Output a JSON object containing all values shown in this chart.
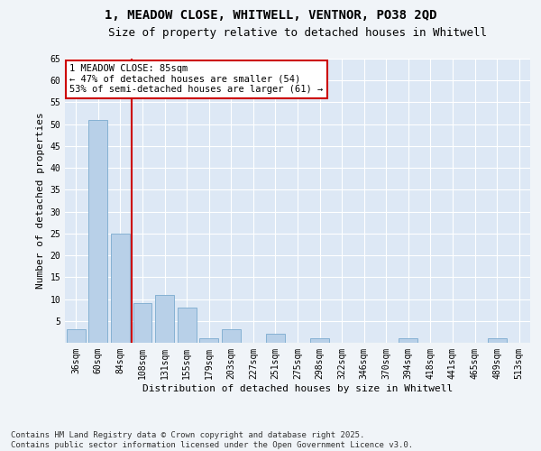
{
  "title1": "1, MEADOW CLOSE, WHITWELL, VENTNOR, PO38 2QD",
  "title2": "Size of property relative to detached houses in Whitwell",
  "xlabel": "Distribution of detached houses by size in Whitwell",
  "ylabel": "Number of detached properties",
  "categories": [
    "36sqm",
    "60sqm",
    "84sqm",
    "108sqm",
    "131sqm",
    "155sqm",
    "179sqm",
    "203sqm",
    "227sqm",
    "251sqm",
    "275sqm",
    "298sqm",
    "322sqm",
    "346sqm",
    "370sqm",
    "394sqm",
    "418sqm",
    "441sqm",
    "465sqm",
    "489sqm",
    "513sqm"
  ],
  "values": [
    3,
    51,
    25,
    9,
    11,
    8,
    1,
    3,
    0,
    2,
    0,
    1,
    0,
    0,
    0,
    1,
    0,
    0,
    0,
    1,
    0
  ],
  "bar_color": "#b8d0e8",
  "bar_edge_color": "#7aaace",
  "property_line_color": "#cc0000",
  "annotation_text": "1 MEADOW CLOSE: 85sqm\n← 47% of detached houses are smaller (54)\n53% of semi-detached houses are larger (61) →",
  "annotation_box_color": "#cc0000",
  "ylim": [
    0,
    65
  ],
  "yticks": [
    0,
    5,
    10,
    15,
    20,
    25,
    30,
    35,
    40,
    45,
    50,
    55,
    60,
    65
  ],
  "bg_color": "#dde8f5",
  "fig_color": "#f0f4f8",
  "footer_text": "Contains HM Land Registry data © Crown copyright and database right 2025.\nContains public sector information licensed under the Open Government Licence v3.0.",
  "title_fontsize": 10,
  "title2_fontsize": 9,
  "axis_label_fontsize": 8,
  "tick_fontsize": 7,
  "annotation_fontsize": 7.5,
  "footer_fontsize": 6.5
}
